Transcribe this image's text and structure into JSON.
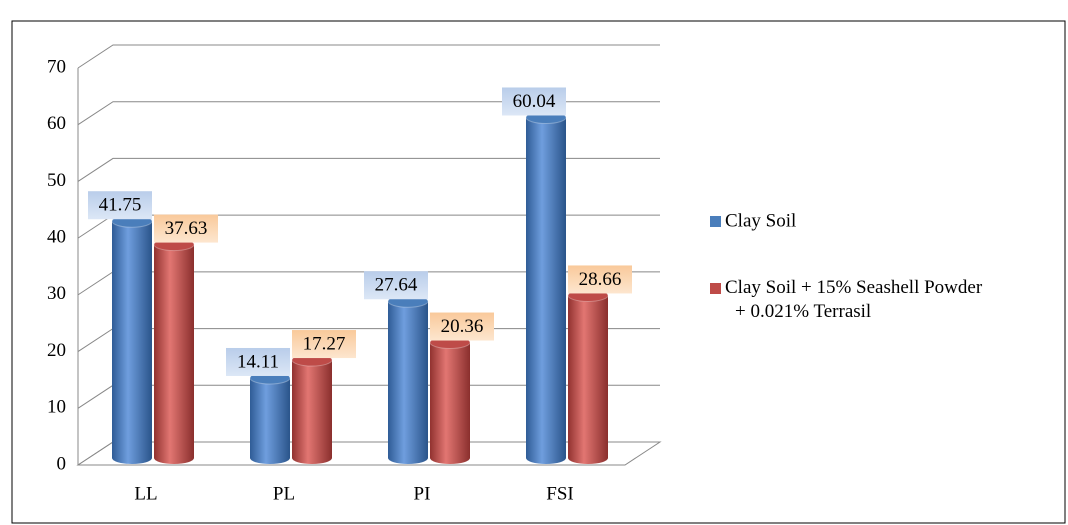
{
  "chart_data": {
    "type": "bar",
    "categories": [
      "LL",
      "PL",
      "PI",
      "FSI"
    ],
    "series": [
      {
        "name": "Clay Soil",
        "color": "#4a7ebb",
        "values": [
          41.75,
          14.11,
          27.64,
          60.04
        ]
      },
      {
        "name": "Clay Soil + 15% Seashell Powder + 0.021% Terrasil",
        "color": "#be4b48",
        "values": [
          37.63,
          17.27,
          20.36,
          28.66
        ]
      }
    ],
    "ylim": [
      0,
      70
    ],
    "yticks": [
      0,
      10,
      20,
      30,
      40,
      50,
      60,
      70
    ],
    "grid": true,
    "legend": "right"
  }
}
